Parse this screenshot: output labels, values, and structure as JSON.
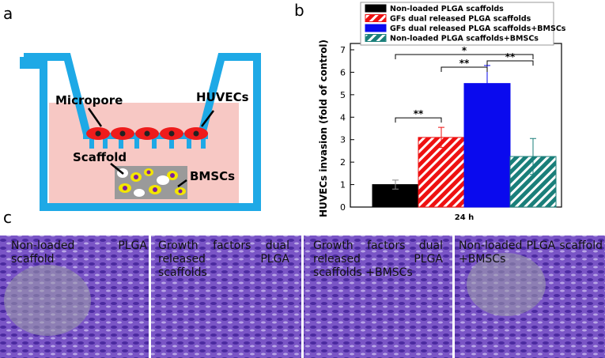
{
  "panel_labels": [
    "a",
    "b",
    "c"
  ],
  "diagram": {
    "labels": [
      "Micropore",
      "HUVECs",
      "Scaffold",
      "BMSCs"
    ]
  },
  "chart_data": {
    "type": "bar",
    "ylabel": "HUVECs invasion (fold of control)",
    "categories": [
      "24 h"
    ],
    "series": [
      {
        "name": "Non-loaded PLGA scaffolds",
        "color": "#000000",
        "hatch": false,
        "values": [
          1.0
        ],
        "errors": [
          0.2
        ]
      },
      {
        "name": "GFs dual released PLGA scaffolds",
        "color": "#ee1111",
        "hatch": true,
        "values": [
          3.1
        ],
        "errors": [
          0.45
        ]
      },
      {
        "name": "GFs dual released PLGA scaffolds+BMSCs",
        "color": "#0a0aee",
        "hatch": false,
        "values": [
          5.5
        ],
        "errors": [
          0.8
        ]
      },
      {
        "name": "Non-loaded PLGA scaffolds+BMSCs",
        "color": "#1a7f7a",
        "hatch": true,
        "values": [
          2.25
        ],
        "errors": [
          0.8
        ]
      }
    ],
    "comparisons": [
      {
        "from": 0,
        "to": 1,
        "label": "**"
      },
      {
        "from": 1,
        "to": 2,
        "label": "**"
      },
      {
        "from": 2,
        "to": 3,
        "label": "**"
      },
      {
        "from": 0,
        "to": 3,
        "label": "*"
      }
    ],
    "ylim": [
      0,
      7
    ],
    "yticks": [
      0,
      1,
      2,
      3,
      4,
      5,
      6,
      7
    ],
    "legend": "top"
  },
  "micrographs": {
    "captions": [
      "Non-loaded PLGA scaffold",
      "Growth factors dual released PLGA scaffolds",
      "Growth factors dual released PLGA scaffolds +BMSCs",
      "Non-loaded PLGA scaffold +BMSCs"
    ]
  }
}
